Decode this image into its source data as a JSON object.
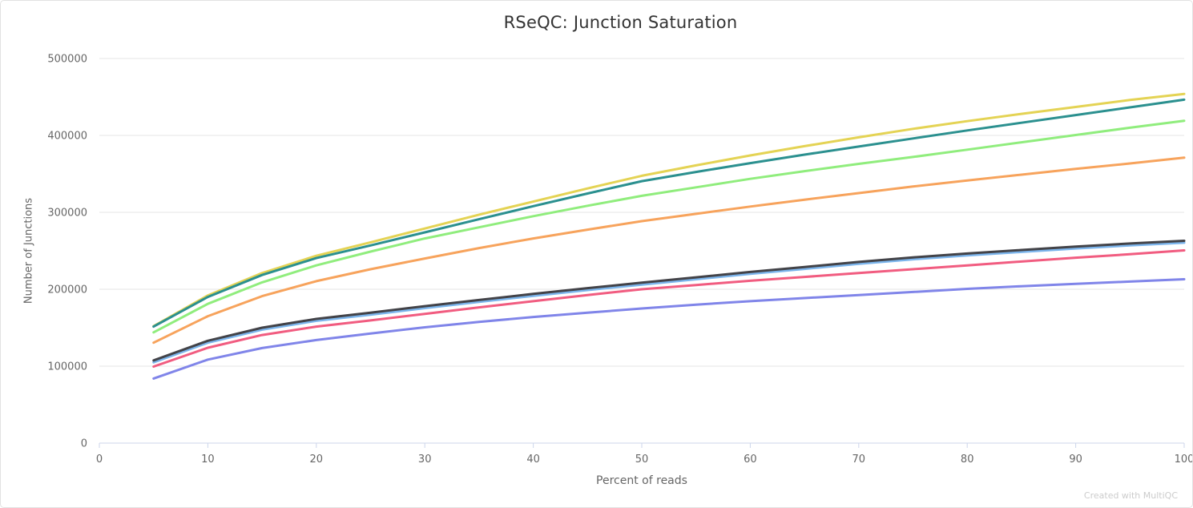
{
  "chart": {
    "watermark": "Created with MultiQC"
  },
  "colors": {
    "background": "#ffffff",
    "card_border": "#e2e2e2",
    "title": "#333333",
    "axis_title": "#666666",
    "tick_label": "#666666",
    "grid": "#e6e6e6",
    "axis_line": "#ccd6eb",
    "watermark": "#cccccc"
  },
  "chart_data": {
    "type": "line",
    "title": "RSeQC: Junction Saturation",
    "xlabel": "Percent of reads",
    "ylabel": "Number of Junctions",
    "xlim": [
      0,
      100
    ],
    "ylim": [
      0,
      500000
    ],
    "xticks": [
      0,
      10,
      20,
      30,
      40,
      50,
      60,
      70,
      80,
      90,
      100
    ],
    "yticks": [
      0,
      100000,
      200000,
      300000,
      400000,
      500000
    ],
    "grid": "horizontal-only",
    "legend": "none",
    "x": [
      5,
      10,
      15,
      20,
      25,
      30,
      35,
      40,
      45,
      50,
      55,
      60,
      65,
      70,
      75,
      80,
      85,
      90,
      95,
      100
    ],
    "series": [
      {
        "name": "light-blue",
        "color": "#7cb5ec",
        "values": [
          105000,
          130500,
          147500,
          159000,
          167000,
          175500,
          183500,
          191500,
          199000,
          206000,
          213000,
          220000,
          226500,
          233000,
          239000,
          244000,
          248500,
          253000,
          257000,
          260500
        ]
      },
      {
        "name": "dark-gray",
        "color": "#434348",
        "values": [
          107500,
          133000,
          150000,
          161500,
          169500,
          178000,
          186000,
          194000,
          201500,
          208500,
          215500,
          222500,
          229000,
          235500,
          241500,
          246500,
          251000,
          255500,
          259500,
          263000
        ]
      },
      {
        "name": "green",
        "color": "#90ed7d",
        "values": [
          144000,
          181000,
          209000,
          231000,
          249000,
          266000,
          280500,
          295000,
          308500,
          321500,
          332500,
          343500,
          353500,
          363000,
          372000,
          381500,
          391000,
          400500,
          410000,
          419000
        ]
      },
      {
        "name": "orange",
        "color": "#f7a35c",
        "values": [
          130500,
          165000,
          191000,
          210500,
          226000,
          240000,
          253500,
          266000,
          277500,
          288500,
          298000,
          307500,
          316500,
          325000,
          333500,
          341500,
          349000,
          356500,
          363500,
          371000
        ]
      },
      {
        "name": "purple",
        "color": "#8085e9",
        "values": [
          84000,
          108500,
          123500,
          134000,
          142500,
          150500,
          157500,
          164000,
          169500,
          175000,
          180000,
          184500,
          188500,
          192500,
          196500,
          200500,
          204000,
          207000,
          210000,
          213000
        ]
      },
      {
        "name": "pink",
        "color": "#f15c80",
        "values": [
          99500,
          124000,
          140500,
          151500,
          159500,
          168000,
          176500,
          184500,
          192500,
          200000,
          205500,
          211000,
          216000,
          221000,
          226000,
          231000,
          236000,
          241000,
          245500,
          250500
        ]
      },
      {
        "name": "yellow",
        "color": "#e4d354",
        "values": [
          152000,
          192000,
          221000,
          243500,
          261000,
          279000,
          297000,
          314000,
          331000,
          347500,
          361000,
          374000,
          386000,
          397500,
          408500,
          418500,
          428000,
          437000,
          446000,
          454000
        ]
      },
      {
        "name": "teal",
        "color": "#2b908f",
        "values": [
          151500,
          190000,
          218500,
          240500,
          257000,
          274000,
          291000,
          308000,
          324500,
          340500,
          352500,
          364000,
          375000,
          385500,
          396000,
          406500,
          416500,
          426500,
          436500,
          446500
        ]
      }
    ]
  }
}
